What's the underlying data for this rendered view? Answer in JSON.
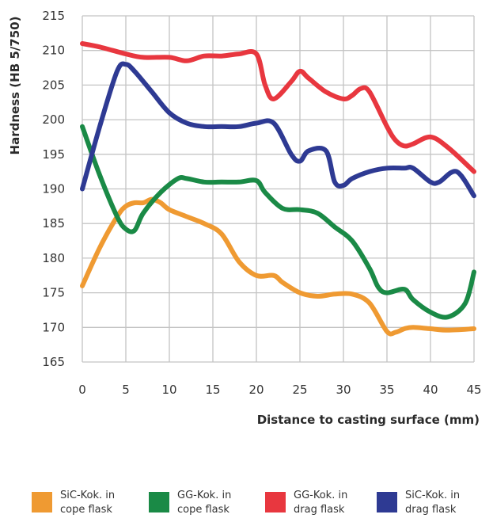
{
  "chart_data": {
    "type": "line",
    "title": "",
    "xlabel": "Distance to casting surface (mm)",
    "ylabel": "Hardness (HB 5/750)",
    "xlim": [
      0,
      45
    ],
    "ylim": [
      165,
      215
    ],
    "xticks": [
      0,
      5,
      10,
      15,
      20,
      25,
      30,
      35,
      40,
      45
    ],
    "yticks": [
      165,
      170,
      175,
      180,
      185,
      190,
      195,
      200,
      205,
      210,
      215
    ],
    "grid": true,
    "legend_position": "bottom",
    "series": [
      {
        "name": "SiC-Kok. in cope flask",
        "color": "#ef9a32",
        "x": [
          0,
          2,
          4,
          5,
          6,
          7,
          8,
          9,
          10,
          12,
          14,
          16,
          18,
          20,
          22,
          23,
          25,
          27,
          29,
          31,
          33,
          35,
          36,
          37,
          38,
          40,
          42,
          45
        ],
        "y": [
          176,
          181.5,
          186,
          187.5,
          188,
          188,
          188.5,
          188,
          187,
          186,
          185,
          183.5,
          179.5,
          177.5,
          177.5,
          176.5,
          175,
          174.5,
          174.8,
          174.8,
          173.5,
          169.4,
          169.3,
          169.8,
          170,
          169.8,
          169.6,
          169.8
        ]
      },
      {
        "name": "GG-Kok. in cope flask",
        "color": "#1a8a46",
        "x": [
          0,
          2,
          4,
          5,
          6,
          7,
          9,
          11,
          12,
          14,
          16,
          18,
          20,
          21,
          23,
          25,
          27,
          29,
          31,
          33,
          34,
          35,
          37,
          38,
          40,
          42,
          44,
          45
        ],
        "y": [
          199,
          192,
          186,
          184.2,
          184,
          186.5,
          189.5,
          191.5,
          191.5,
          191,
          191,
          191,
          191.2,
          189.5,
          187.2,
          187,
          186.5,
          184.5,
          182.5,
          178.5,
          175.8,
          175,
          175.5,
          174,
          172.2,
          171.5,
          173.5,
          178
        ]
      },
      {
        "name": "GG-Kok. in drag flask",
        "color": "#e8373f",
        "x": [
          0,
          2,
          5,
          7,
          10,
          12,
          14,
          16,
          18,
          20,
          21,
          22,
          24,
          25,
          26,
          28,
          30,
          31,
          32,
          33,
          35,
          36,
          37,
          38,
          40,
          42,
          45
        ],
        "y": [
          211,
          210.5,
          209.5,
          209,
          209,
          208.5,
          209.2,
          209.2,
          209.5,
          209.5,
          205,
          203,
          205.5,
          207,
          206,
          204,
          203,
          203.5,
          204.5,
          204,
          199,
          197,
          196.2,
          196.5,
          197.5,
          196,
          192.5
        ]
      },
      {
        "name": "SiC-Kok. in drag flask",
        "color": "#2e3a93",
        "x": [
          0,
          2,
          4,
          5,
          6,
          8,
          10,
          12,
          14,
          16,
          18,
          20,
          22,
          24,
          25,
          26,
          28,
          29,
          30,
          31,
          33,
          35,
          37,
          38,
          40,
          41,
          43,
          45
        ],
        "y": [
          190,
          199,
          207,
          208,
          207,
          204,
          201,
          199.5,
          199,
          199,
          199,
          199.5,
          199.5,
          195,
          194,
          195.5,
          195.5,
          191,
          190.5,
          191.5,
          192.5,
          193,
          193,
          193,
          191,
          191,
          192.5,
          189
        ]
      }
    ]
  },
  "legend": {
    "items": [
      {
        "line1": "SiC-Kok. in",
        "line2": "cope flask",
        "color": "#ef9a32"
      },
      {
        "line1": "GG-Kok. in",
        "line2": "cope flask",
        "color": "#1a8a46"
      },
      {
        "line1": "GG-Kok. in",
        "line2": "drag flask",
        "color": "#e8373f"
      },
      {
        "line1": "SiC-Kok. in",
        "line2": "drag flask",
        "color": "#2e3a93"
      }
    ]
  }
}
